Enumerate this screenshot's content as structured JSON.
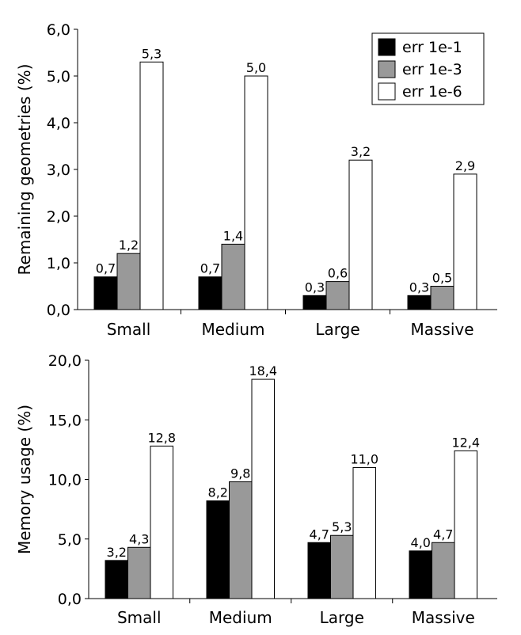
{
  "chart_data": [
    {
      "type": "bar",
      "ylabel": "Remaining geometries (%)",
      "ylim": [
        0,
        6
      ],
      "yticks": [
        "0,0",
        "1,0",
        "2,0",
        "3,0",
        "4,0",
        "5,0",
        "6,0"
      ],
      "categories": [
        "Small",
        "Medium",
        "Large",
        "Massive"
      ],
      "legend_position": "top-right",
      "series": [
        {
          "name": "err 1e-1",
          "color": "#000000",
          "values": [
            0.7,
            0.7,
            0.3,
            0.3
          ],
          "labels": [
            "0,7",
            "0,7",
            "0,3",
            "0,3"
          ]
        },
        {
          "name": "err 1e-3",
          "color": "#999999",
          "values": [
            1.2,
            1.4,
            0.6,
            0.5
          ],
          "labels": [
            "1,2",
            "1,4",
            "0,6",
            "0,5"
          ]
        },
        {
          "name": "err 1e-6",
          "color": "#ffffff",
          "values": [
            5.3,
            5.0,
            3.2,
            2.9
          ],
          "labels": [
            "5,3",
            "5,0",
            "3,2",
            "2,9"
          ]
        }
      ]
    },
    {
      "type": "bar",
      "ylabel": "Memory usage (%)",
      "ylim": [
        0,
        20
      ],
      "yticks": [
        "0,0",
        "5,0",
        "10,0",
        "15,0",
        "20,0"
      ],
      "categories": [
        "Small",
        "Medium",
        "Large",
        "Massive"
      ],
      "series": [
        {
          "name": "err 1e-1",
          "color": "#000000",
          "values": [
            3.2,
            8.2,
            4.7,
            4.0
          ],
          "labels": [
            "3,2",
            "8,2",
            "4,7",
            "4,0"
          ]
        },
        {
          "name": "err 1e-3",
          "color": "#999999",
          "values": [
            4.3,
            9.8,
            5.3,
            4.7
          ],
          "labels": [
            "4,3",
            "9,8",
            "5,3",
            "4,7"
          ]
        },
        {
          "name": "err 1e-6",
          "color": "#ffffff",
          "values": [
            12.8,
            18.4,
            11.0,
            12.4
          ],
          "labels": [
            "12,8",
            "18,4",
            "11,0",
            "12,4"
          ]
        }
      ]
    }
  ]
}
